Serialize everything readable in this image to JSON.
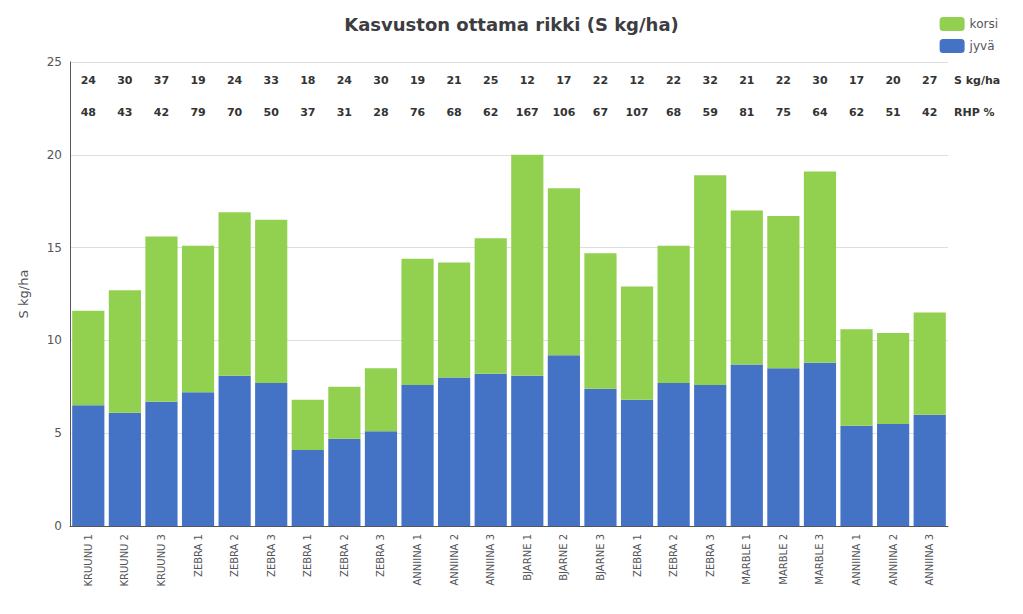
{
  "chart_data": {
    "type": "bar",
    "title": "Kasvuston ottama rikki (S kg/ha)",
    "ylabel": "S kg/ha",
    "categories": [
      "KRUUNU 1",
      "KRUUNU 2",
      "KRUUNU 3",
      "ZEBRA 1",
      "ZEBRA 2",
      "ZEBRA 3",
      "ZEBRA 1",
      "ZEBRA 2",
      "ZEBRA 3",
      "ANNIINA 1",
      "ANNIINA 2",
      "ANNIINA 3",
      "BJARNE 1",
      "BJARNE 2",
      "BJARNE 3",
      "ZEBRA 1",
      "ZEBRA 2",
      "ZEBRA 3",
      "MARBLE 1",
      "MARBLE 2",
      "MARBLE 3",
      "ANNIINA 1",
      "ANNIINA 2",
      "ANNIINA 3"
    ],
    "series": [
      {
        "name": "jyvä",
        "color": "#4472C4",
        "values": [
          6.5,
          6.1,
          6.7,
          7.2,
          8.1,
          7.7,
          4.1,
          4.7,
          5.1,
          7.6,
          8.0,
          8.2,
          8.1,
          9.2,
          7.4,
          6.8,
          7.7,
          7.6,
          8.7,
          8.5,
          8.8,
          5.4,
          5.5,
          6.0
        ]
      },
      {
        "name": "korsi",
        "color": "#92D050",
        "values": [
          5.1,
          6.6,
          8.9,
          7.9,
          8.8,
          8.8,
          2.7,
          2.8,
          3.4,
          6.8,
          6.2,
          7.3,
          11.9,
          9.0,
          7.3,
          6.1,
          7.4,
          11.3,
          8.3,
          8.2,
          10.3,
          5.2,
          4.9,
          5.5
        ]
      }
    ],
    "stacked": true,
    "ylim": [
      0,
      25
    ],
    "yticks": [
      0,
      5,
      10,
      15,
      20,
      25
    ],
    "grid": true,
    "legend": "upper right",
    "annotations": [
      {
        "text": "S kg/ha",
        "values": [
          24,
          30,
          37,
          19,
          24,
          33,
          18,
          24,
          30,
          19,
          21,
          25,
          12,
          17,
          22,
          12,
          22,
          32,
          21,
          22,
          30,
          17,
          20,
          27
        ]
      },
      {
        "text": "RHP %",
        "values": [
          48,
          43,
          42,
          79,
          70,
          50,
          37,
          31,
          28,
          76,
          68,
          62,
          167,
          106,
          67,
          107,
          68,
          59,
          81,
          75,
          64,
          62,
          51,
          42
        ]
      }
    ]
  }
}
